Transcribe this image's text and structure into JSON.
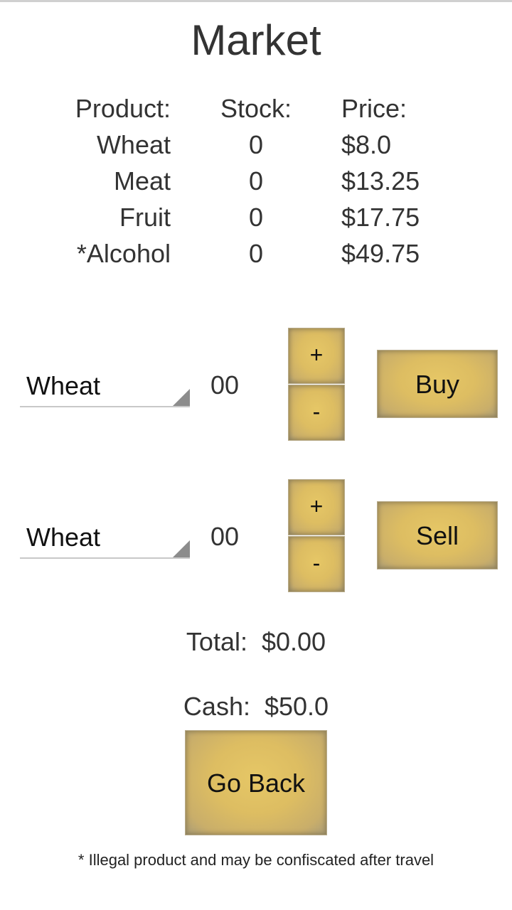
{
  "title": "Market",
  "table": {
    "headers": {
      "product": "Product:",
      "stock": "Stock:",
      "price": "Price:"
    },
    "rows": [
      {
        "product": "Wheat",
        "stock": "0",
        "price": "$8.0"
      },
      {
        "product": "Meat",
        "stock": "0",
        "price": "$13.25"
      },
      {
        "product": "Fruit",
        "stock": "0",
        "price": "$17.75"
      },
      {
        "product": "*Alcohol",
        "stock": "0",
        "price": "$49.75"
      }
    ]
  },
  "buy": {
    "product": "Wheat",
    "quantity": "00",
    "plus": "+",
    "minus": "-",
    "action": "Buy"
  },
  "sell": {
    "product": "Wheat",
    "quantity": "00",
    "plus": "+",
    "minus": "-",
    "action": "Sell"
  },
  "total": {
    "label": "Total:",
    "value": "$0.00"
  },
  "cash": {
    "label": "Cash:",
    "value": "$50.0"
  },
  "go_back": "Go Back",
  "footnote": "* Illegal product and may be confiscated after travel",
  "colors": {
    "button_parchment": "#ddbd62",
    "text": "#333333"
  }
}
